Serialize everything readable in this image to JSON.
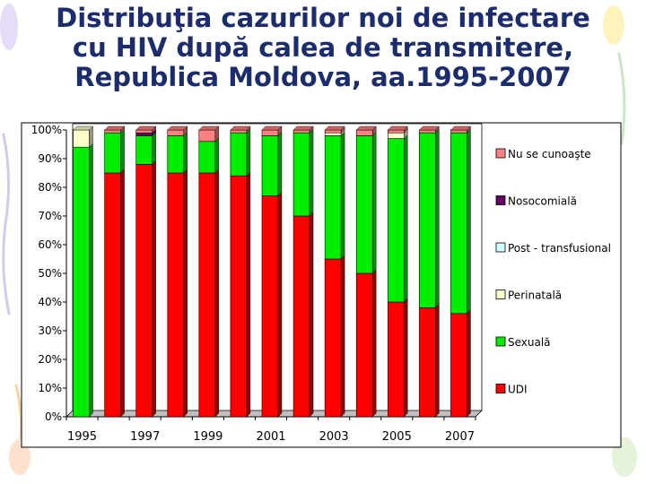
{
  "title_lines": [
    "Distribuţia cazurilor noi de infectare",
    "cu HIV după calea de transmitere,",
    "Republica Moldova, aa.1995-2007"
  ],
  "chart_data": {
    "type": "bar",
    "stacked": true,
    "percent": true,
    "title": "Distribuţia cazurilor noi de infectare cu HIV după calea de transmitere, Republica Moldova, aa.1995-2007",
    "categories": [
      "1995",
      "1996",
      "1997",
      "1998",
      "1999",
      "2000",
      "2001",
      "2002",
      "2003",
      "2004",
      "2005",
      "2006",
      "2007"
    ],
    "x_tick_labels": [
      "1995",
      "",
      "1997",
      "",
      "1999",
      "",
      "2001",
      "",
      "2003",
      "",
      "2005",
      "",
      "2007"
    ],
    "y_tick_labels": [
      "0%",
      "10%",
      "20%",
      "30%",
      "40%",
      "50%",
      "60%",
      "70%",
      "80%",
      "90%",
      "100%"
    ],
    "ylim": [
      0,
      100
    ],
    "grid": false,
    "legend_position": "right",
    "series": [
      {
        "name": "UDI",
        "color": "#ff0000",
        "values": [
          0,
          85,
          88,
          85,
          85,
          84,
          77,
          70,
          55,
          50,
          40,
          38,
          36
        ]
      },
      {
        "name": "Sexuală",
        "color": "#00ee00",
        "values": [
          94,
          14,
          10,
          13,
          11,
          15,
          21,
          29,
          43,
          48,
          57,
          61,
          63
        ]
      },
      {
        "name": "Perinatală",
        "color": "#ffffcc",
        "values": [
          6,
          0,
          0,
          0,
          0,
          0,
          0,
          0,
          1,
          0,
          2,
          0,
          0
        ]
      },
      {
        "name": "Post - transfusional",
        "color": "#ccffff",
        "values": [
          0,
          0,
          0,
          0,
          0,
          0,
          0,
          0,
          0,
          0,
          0,
          0,
          0
        ]
      },
      {
        "name": "Nosocomială",
        "color": "#660066",
        "values": [
          0,
          0,
          1,
          0,
          0,
          0,
          0,
          0,
          0,
          0,
          0,
          0,
          0
        ]
      },
      {
        "name": "Nu se cunoaşte",
        "color": "#ff8080",
        "values": [
          0,
          1,
          1,
          2,
          4,
          1,
          2,
          1,
          1,
          2,
          1,
          1,
          1
        ]
      }
    ],
    "legend_order": [
      "Nu se cunoaşte",
      "Nosocomială",
      "Post - transfusional",
      "Perinatală",
      "Sexuală",
      "UDI"
    ]
  }
}
